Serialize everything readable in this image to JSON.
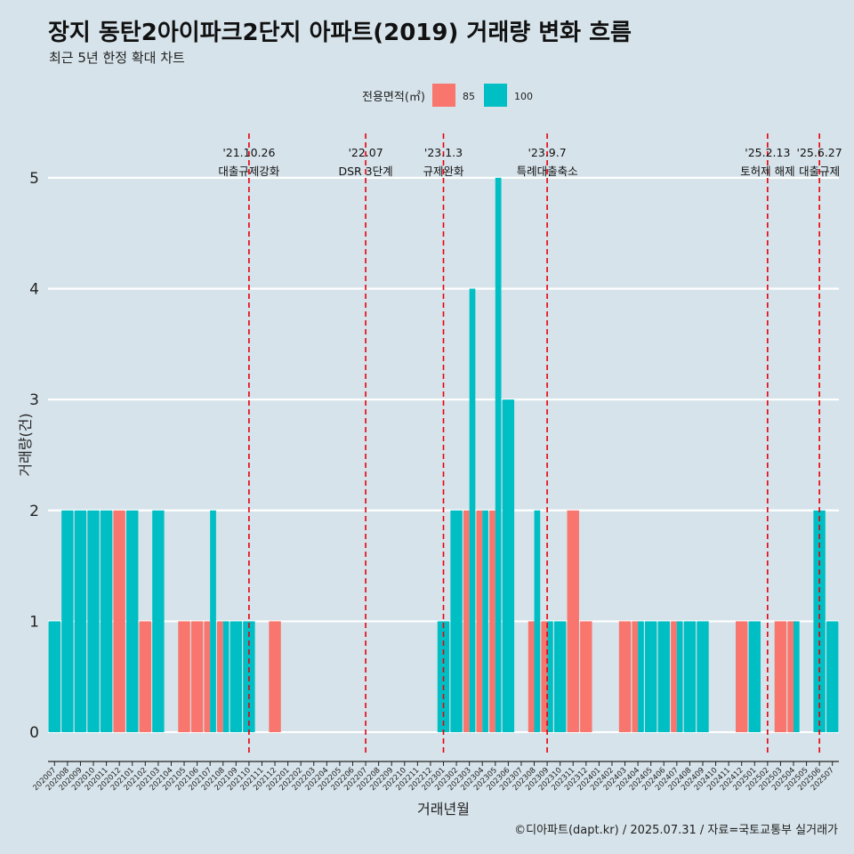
{
  "title": "장지 동탄2아이파크2단지 아파트(2019) 거래량 변화 흐름",
  "subtitle": "최근 5년 한정 확대 차트",
  "caption": "©디아파트(dapt.kr) / 2025.07.31 / 자료=국토교통부 실거래가",
  "chart_data": {
    "type": "bar",
    "xlabel": "거래년월",
    "ylabel": "거래량(건)",
    "ylim": [
      -0.2,
      5.4
    ],
    "yticks": [
      0,
      1,
      2,
      3,
      4,
      5
    ],
    "grid": true,
    "legend": {
      "title": "전용면적(㎡)",
      "position": "top",
      "entries": [
        {
          "name": "85",
          "color": "#f8766d"
        },
        {
          "name": "100",
          "color": "#00bfc4"
        }
      ]
    },
    "categories": [
      "202007",
      "202008",
      "202009",
      "202010",
      "202011",
      "202012",
      "202101",
      "202102",
      "202103",
      "202104",
      "202105",
      "202106",
      "202107",
      "202108",
      "202109",
      "202110",
      "202111",
      "202112",
      "202201",
      "202202",
      "202203",
      "202204",
      "202205",
      "202206",
      "202207",
      "202208",
      "202209",
      "202210",
      "202211",
      "202212",
      "202301",
      "202302",
      "202303",
      "202304",
      "202305",
      "202306",
      "202307",
      "202308",
      "202309",
      "202310",
      "202311",
      "202312",
      "202401",
      "202402",
      "202403",
      "202404",
      "202405",
      "202406",
      "202407",
      "202408",
      "202409",
      "202410",
      "202411",
      "202412",
      "202501",
      "202502",
      "202503",
      "202504",
      "202505",
      "202506",
      "202507"
    ],
    "series": [
      {
        "name": "85",
        "color": "#f8766d",
        "values": [
          0,
          0,
          0,
          0,
          0,
          2,
          0,
          1,
          0,
          0,
          1,
          1,
          1,
          1,
          0,
          0,
          0,
          1,
          0,
          0,
          0,
          0,
          0,
          0,
          0,
          0,
          0,
          0,
          0,
          0,
          0,
          0,
          2,
          2,
          2,
          0,
          0,
          1,
          1,
          0,
          2,
          1,
          0,
          0,
          1,
          1,
          0,
          0,
          1,
          0,
          0,
          0,
          0,
          1,
          0,
          0,
          1,
          1,
          0,
          0,
          0
        ]
      },
      {
        "name": "100",
        "color": "#00bfc4",
        "values": [
          1,
          2,
          2,
          2,
          2,
          0,
          2,
          0,
          2,
          0,
          0,
          0,
          2,
          1,
          1,
          1,
          0,
          0,
          0,
          0,
          0,
          0,
          0,
          0,
          0,
          0,
          0,
          0,
          0,
          0,
          1,
          2,
          4,
          2,
          5,
          3,
          0,
          2,
          1,
          1,
          0,
          0,
          0,
          0,
          0,
          1,
          1,
          1,
          1,
          1,
          1,
          0,
          0,
          0,
          1,
          0,
          0,
          1,
          0,
          2,
          1
        ]
      }
    ],
    "events": [
      {
        "category": "202110",
        "date": "'21.10.26",
        "label": "대출규제강화"
      },
      {
        "category": "202207",
        "date": "'22.07",
        "label": "DSR 3단계"
      },
      {
        "category": "202301",
        "date": "'23.1.3",
        "label": "규제완화"
      },
      {
        "category": "202309",
        "date": "'23.9.7",
        "label": "특례대출축소"
      },
      {
        "category": "202502",
        "date": "'25.2.13",
        "label": "토허제 해제"
      },
      {
        "category": "202506",
        "date": "'25.6.27",
        "label": "대출규제"
      }
    ]
  }
}
